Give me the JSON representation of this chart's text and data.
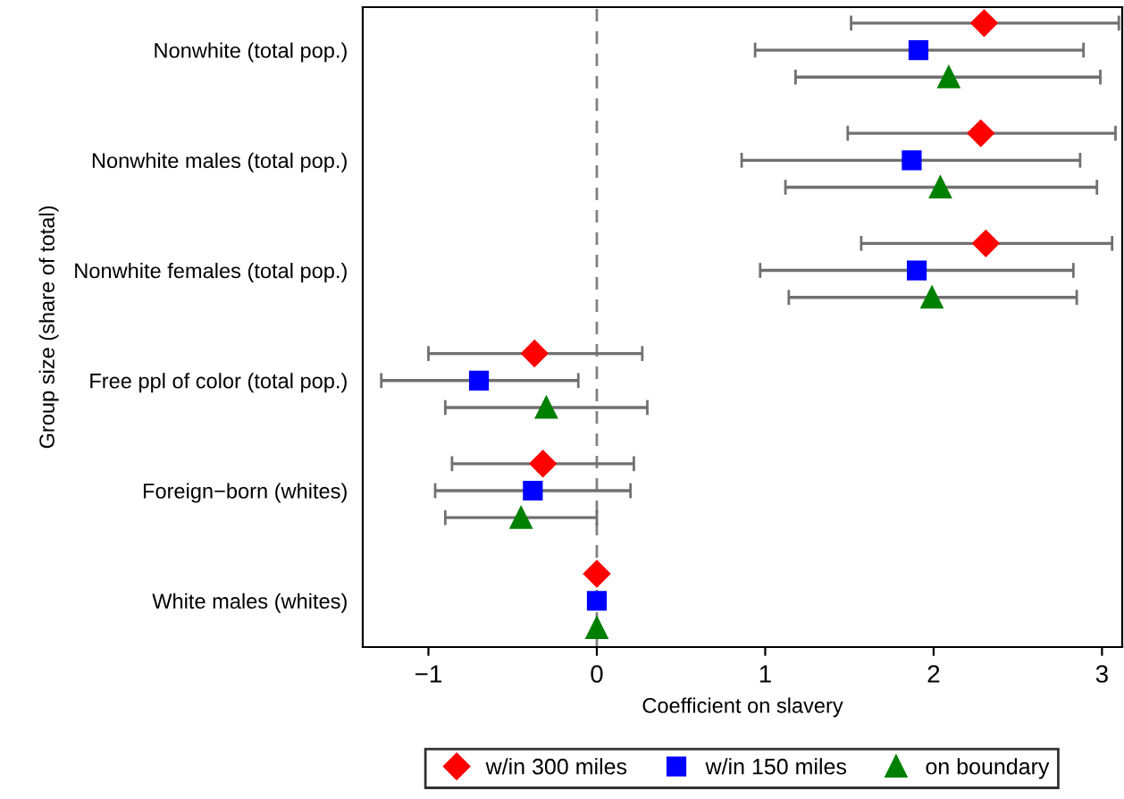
{
  "chart_data": {
    "type": "scatter",
    "orientation": "horizontal",
    "xlabel": "Coefficient on slavery",
    "ylabel": "Group size (share of total)",
    "categories": [
      "Nonwhite (total pop.)",
      "Nonwhite males (total pop.)",
      "Nonwhite females (total pop.)",
      "Free ppl of color (total pop.)",
      "Foreign−born (whites)",
      "White males (whites)"
    ],
    "series": [
      {
        "name": "w/in 300 miles",
        "color": "#ff0000",
        "marker": "diamond",
        "values": [
          2.3,
          2.28,
          2.31,
          -0.37,
          -0.32,
          0
        ],
        "errors": [
          [
            1.51,
            3.1
          ],
          [
            1.49,
            3.08
          ],
          [
            1.57,
            3.06
          ],
          [
            -1.0,
            0.27
          ],
          [
            -0.86,
            0.22
          ],
          null
        ]
      },
      {
        "name": "w/in 150 miles",
        "color": "#0000ff",
        "marker": "square",
        "values": [
          1.91,
          1.87,
          1.9,
          -0.7,
          -0.38,
          0
        ],
        "errors": [
          [
            0.94,
            2.89
          ],
          [
            0.86,
            2.87
          ],
          [
            0.97,
            2.83
          ],
          [
            -1.28,
            -0.11
          ],
          [
            -0.96,
            0.2
          ],
          null
        ]
      },
      {
        "name": "on boundary",
        "color": "#008000",
        "marker": "triangle",
        "values": [
          2.09,
          2.04,
          1.99,
          -0.3,
          -0.45,
          0
        ],
        "errors": [
          [
            1.18,
            2.99
          ],
          [
            1.12,
            2.97
          ],
          [
            1.14,
            2.85
          ],
          [
            -0.9,
            0.3
          ],
          [
            -0.9,
            0.0
          ],
          null
        ]
      }
    ],
    "xlim": [
      -1.39,
      3.12
    ],
    "xticks": [
      {
        "value": -1,
        "label": "−1"
      },
      0,
      1,
      2,
      3
    ],
    "ref_lines": [
      {
        "axis": "x",
        "value": 0,
        "color": "#808080",
        "line_style": "dashed"
      }
    ],
    "grid": false,
    "legend": "bottom"
  }
}
